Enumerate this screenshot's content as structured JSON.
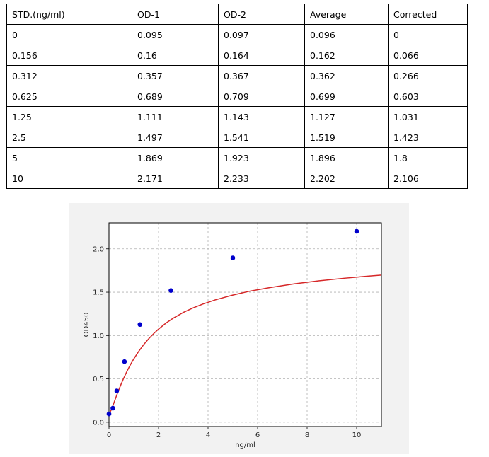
{
  "table": {
    "headers": [
      "STD.(ng/ml)",
      "OD-1",
      "OD-2",
      "Average",
      "Corrected"
    ],
    "rows": [
      [
        "0",
        "0.095",
        "0.097",
        "0.096",
        "0"
      ],
      [
        "0.156",
        "0.16",
        "0.164",
        "0.162",
        "0.066"
      ],
      [
        "0.312",
        "0.357",
        "0.367",
        "0.362",
        "0.266"
      ],
      [
        "0.625",
        "0.689",
        "0.709",
        "0.699",
        "0.603"
      ],
      [
        "1.25",
        "1.111",
        "1.143",
        "1.127",
        "1.031"
      ],
      [
        "2.5",
        "1.497",
        "1.541",
        "1.519",
        "1.423"
      ],
      [
        "5",
        "1.869",
        "1.923",
        "1.896",
        "1.8"
      ],
      [
        "10",
        "2.171",
        "2.233",
        "2.202",
        "2.106"
      ]
    ]
  },
  "chart_data": {
    "type": "scatter",
    "xlabel": "ng/ml",
    "ylabel": "OD450",
    "xlim": [
      0,
      11
    ],
    "ylim": [
      -0.05,
      2.3
    ],
    "xticks": [
      0,
      2,
      4,
      6,
      8,
      10
    ],
    "yticks": [
      0.0,
      0.5,
      1.0,
      1.5,
      2.0
    ],
    "xtick_labels": [
      "0",
      "2",
      "4",
      "6",
      "8",
      "10"
    ],
    "ytick_labels": [
      "0.0",
      "0.5",
      "1.0",
      "1.5",
      "2.0"
    ],
    "grid": true,
    "points": {
      "x": [
        0,
        0.156,
        0.312,
        0.625,
        1.25,
        2.5,
        5,
        10
      ],
      "y": [
        0.096,
        0.162,
        0.362,
        0.699,
        1.127,
        1.519,
        1.896,
        2.202
      ],
      "color": "#0000cc"
    },
    "fit_curve": {
      "color": "#d62728",
      "x": [
        0,
        0.1,
        0.2,
        0.3,
        0.4,
        0.5,
        0.6,
        0.7,
        0.8,
        0.9,
        1.0,
        1.2,
        1.4,
        1.6,
        1.8,
        2.0,
        2.3,
        2.6,
        3.0,
        3.4,
        3.8,
        4.3,
        5.0,
        5.7,
        6.5,
        7.5,
        8.5,
        9.5,
        10.5,
        11.0
      ],
      "y": [
        0.096,
        0.145,
        0.224,
        0.303,
        0.377,
        0.447,
        0.512,
        0.573,
        0.629,
        0.681,
        0.73,
        0.818,
        0.895,
        0.962,
        1.021,
        1.074,
        1.143,
        1.201,
        1.266,
        1.319,
        1.364,
        1.412,
        1.467,
        1.513,
        1.553,
        1.597,
        1.632,
        1.661,
        1.686,
        1.697
      ]
    }
  }
}
